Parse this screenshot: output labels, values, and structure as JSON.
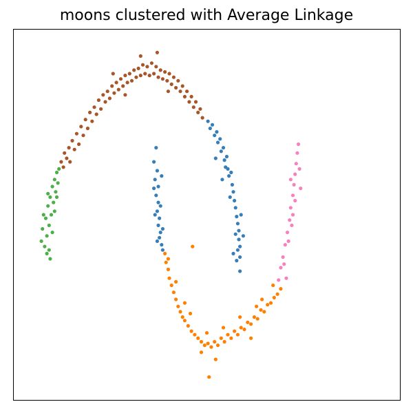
{
  "chart_data": {
    "type": "scatter",
    "title": "moons clustered with Average Linkage",
    "xlabel": "",
    "ylabel": "",
    "xlim": [
      -1.25,
      2.25
    ],
    "ylim": [
      -0.85,
      1.25
    ],
    "grid": false,
    "legend": "none",
    "axis_ticks": "hidden",
    "series": [
      {
        "color": "#a65628",
        "points": [
          [
            -0.82,
            0.5
          ],
          [
            -0.8,
            0.47
          ],
          [
            -0.79,
            0.55
          ],
          [
            -0.77,
            0.52
          ],
          [
            -0.75,
            0.58
          ],
          [
            -0.74,
            0.5
          ],
          [
            -0.72,
            0.62
          ],
          [
            -0.7,
            0.57
          ],
          [
            -0.68,
            0.66
          ],
          [
            -0.66,
            0.6
          ],
          [
            -0.64,
            0.7
          ],
          [
            -0.62,
            0.65
          ],
          [
            -0.6,
            0.74
          ],
          [
            -0.58,
            0.69
          ],
          [
            -0.56,
            0.78
          ],
          [
            -0.54,
            0.73
          ],
          [
            -0.52,
            0.81
          ],
          [
            -0.5,
            0.77
          ],
          [
            -0.48,
            0.85
          ],
          [
            -0.46,
            0.8
          ],
          [
            -0.44,
            0.88
          ],
          [
            -0.42,
            0.84
          ],
          [
            -0.4,
            0.9
          ],
          [
            -0.38,
            0.86
          ],
          [
            -0.36,
            0.93
          ],
          [
            -0.34,
            0.89
          ],
          [
            -0.32,
            0.95
          ],
          [
            -0.3,
            0.91
          ],
          [
            -0.28,
            0.97
          ],
          [
            -0.26,
            0.93
          ],
          [
            -0.24,
            0.99
          ],
          [
            -0.22,
            0.95
          ],
          [
            -0.2,
            1.0
          ],
          [
            -0.18,
            0.96
          ],
          [
            -0.16,
            1.02
          ],
          [
            -0.14,
            0.98
          ],
          [
            -0.12,
            1.03
          ],
          [
            -0.1,
            0.99
          ],
          [
            -0.08,
            1.05
          ],
          [
            -0.06,
            1.0
          ],
          [
            -0.04,
            1.04
          ],
          [
            -0.02,
            0.99
          ],
          [
            0.0,
            1.06
          ],
          [
            0.02,
            1.0
          ],
          [
            0.04,
            1.04
          ],
          [
            0.06,
            0.98
          ],
          [
            0.08,
            1.02
          ],
          [
            0.1,
            0.97
          ],
          [
            0.12,
            1.01
          ],
          [
            0.14,
            0.96
          ],
          [
            0.16,
            1.0
          ],
          [
            0.18,
            0.94
          ],
          [
            0.2,
            0.98
          ],
          [
            0.22,
            0.92
          ],
          [
            0.24,
            0.96
          ],
          [
            0.26,
            0.9
          ],
          [
            0.28,
            0.93
          ],
          [
            0.3,
            0.87
          ],
          [
            0.32,
            0.9
          ],
          [
            0.34,
            0.84
          ],
          [
            0.36,
            0.87
          ],
          [
            0.38,
            0.81
          ],
          [
            0.4,
            0.84
          ],
          [
            0.42,
            0.78
          ],
          [
            0.44,
            0.8
          ],
          [
            0.46,
            0.75
          ],
          [
            -0.35,
            1.0
          ],
          [
            -0.1,
            1.1
          ],
          [
            -0.24,
            0.88
          ],
          [
            0.15,
            0.9
          ],
          [
            0.05,
            1.12
          ]
        ]
      },
      {
        "color": "#4daf4a",
        "points": [
          [
            -1.0,
            0.05
          ],
          [
            -0.99,
            0.12
          ],
          [
            -0.97,
            0.02
          ],
          [
            -0.96,
            0.18
          ],
          [
            -0.95,
            0.08
          ],
          [
            -0.94,
            0.25
          ],
          [
            -0.93,
            0.14
          ],
          [
            -0.92,
            0.3
          ],
          [
            -0.91,
            0.2
          ],
          [
            -0.9,
            0.36
          ],
          [
            -0.89,
            0.27
          ],
          [
            -0.88,
            0.4
          ],
          [
            -0.87,
            0.33
          ],
          [
            -0.86,
            0.44
          ],
          [
            -0.85,
            0.38
          ],
          [
            -0.84,
            0.46
          ],
          [
            -0.95,
            -0.02
          ],
          [
            -0.93,
            0.0
          ],
          [
            -0.9,
            0.1
          ],
          [
            -0.88,
            0.22
          ],
          [
            -0.92,
            -0.05
          ],
          [
            -0.86,
            0.3
          ],
          [
            -0.98,
            0.2
          ],
          [
            -0.94,
            0.32
          ]
        ]
      },
      {
        "color": "#377eb8",
        "points": [
          [
            0.04,
            0.58
          ],
          [
            0.02,
            0.5
          ],
          [
            0.05,
            0.45
          ],
          [
            0.03,
            0.4
          ],
          [
            0.06,
            0.36
          ],
          [
            0.04,
            0.31
          ],
          [
            0.06,
            0.27
          ],
          [
            0.05,
            0.22
          ],
          [
            0.07,
            0.18
          ],
          [
            0.06,
            0.14
          ],
          [
            0.08,
            0.1
          ],
          [
            0.07,
            0.07
          ],
          [
            0.09,
            0.03
          ],
          [
            0.1,
            0.0
          ],
          [
            0.08,
            0.25
          ],
          [
            0.03,
            0.2
          ],
          [
            0.1,
            0.12
          ],
          [
            0.02,
            0.35
          ],
          [
            0.09,
            0.42
          ],
          [
            0.05,
            0.05
          ],
          [
            0.51,
            0.73
          ],
          [
            0.53,
            0.69
          ],
          [
            0.55,
            0.71
          ],
          [
            0.57,
            0.65
          ],
          [
            0.59,
            0.67
          ],
          [
            0.6,
            0.61
          ],
          [
            0.62,
            0.63
          ],
          [
            0.63,
            0.56
          ],
          [
            0.65,
            0.58
          ],
          [
            0.66,
            0.51
          ],
          [
            0.68,
            0.53
          ],
          [
            0.69,
            0.46
          ],
          [
            0.7,
            0.42
          ],
          [
            0.72,
            0.44
          ],
          [
            0.73,
            0.37
          ],
          [
            0.74,
            0.33
          ],
          [
            0.75,
            0.28
          ],
          [
            0.76,
            0.24
          ],
          [
            0.77,
            0.19
          ],
          [
            0.78,
            0.15
          ],
          [
            0.79,
            0.11
          ],
          [
            0.79,
            0.06
          ],
          [
            0.8,
            0.02
          ],
          [
            0.8,
            -0.04
          ],
          [
            0.78,
            0.0
          ],
          [
            0.76,
            0.09
          ],
          [
            0.71,
            0.3
          ],
          [
            0.67,
            0.47
          ],
          [
            0.81,
            0.2
          ],
          [
            0.83,
            0.08
          ],
          [
            0.74,
            -0.02
          ],
          [
            0.77,
            -0.06
          ],
          [
            0.8,
            -0.12
          ],
          [
            0.64,
            0.4
          ],
          [
            0.58,
            0.52
          ]
        ]
      },
      {
        "color": "#ff7f00",
        "points": [
          [
            0.12,
            -0.02
          ],
          [
            0.13,
            -0.07
          ],
          [
            0.15,
            -0.11
          ],
          [
            0.16,
            -0.16
          ],
          [
            0.18,
            -0.2
          ],
          [
            0.2,
            -0.24
          ],
          [
            0.22,
            -0.28
          ],
          [
            0.24,
            -0.32
          ],
          [
            0.26,
            -0.35
          ],
          [
            0.28,
            -0.38
          ],
          [
            0.3,
            -0.4
          ],
          [
            0.33,
            -0.43
          ],
          [
            0.36,
            -0.46
          ],
          [
            0.39,
            -0.48
          ],
          [
            0.42,
            -0.5
          ],
          [
            0.45,
            -0.52
          ],
          [
            0.48,
            -0.54
          ],
          [
            0.51,
            -0.53
          ],
          [
            0.54,
            -0.55
          ],
          [
            0.57,
            -0.52
          ],
          [
            0.6,
            -0.54
          ],
          [
            0.63,
            -0.5
          ],
          [
            0.66,
            -0.52
          ],
          [
            0.69,
            -0.48
          ],
          [
            0.72,
            -0.5
          ],
          [
            0.75,
            -0.46
          ],
          [
            0.78,
            -0.48
          ],
          [
            0.81,
            -0.44
          ],
          [
            0.84,
            -0.45
          ],
          [
            0.87,
            -0.41
          ],
          [
            0.9,
            -0.42
          ],
          [
            0.93,
            -0.38
          ],
          [
            0.96,
            -0.39
          ],
          [
            0.99,
            -0.34
          ],
          [
            1.02,
            -0.35
          ],
          [
            1.05,
            -0.31
          ],
          [
            1.08,
            -0.3
          ],
          [
            1.11,
            -0.27
          ],
          [
            1.14,
            -0.25
          ],
          [
            1.17,
            -0.22
          ],
          [
            0.22,
            -0.18
          ],
          [
            0.35,
            -0.36
          ],
          [
            0.5,
            -0.47
          ],
          [
            0.65,
            -0.44
          ],
          [
            0.8,
            -0.38
          ],
          [
            0.95,
            -0.32
          ],
          [
            1.1,
            -0.2
          ],
          [
            0.58,
            -0.62
          ],
          [
            0.52,
            -0.72
          ],
          [
            0.37,
            0.02
          ],
          [
            0.9,
            -0.5
          ],
          [
            0.3,
            -0.3
          ],
          [
            0.45,
            -0.58
          ],
          [
            1.0,
            -0.28
          ],
          [
            0.15,
            -0.05
          ]
        ]
      },
      {
        "color": "#f781bf",
        "points": [
          [
            1.15,
            -0.17
          ],
          [
            1.17,
            -0.1
          ],
          [
            1.19,
            -0.04
          ],
          [
            1.21,
            0.03
          ],
          [
            1.23,
            0.1
          ],
          [
            1.25,
            0.17
          ],
          [
            1.26,
            0.24
          ],
          [
            1.28,
            0.31
          ],
          [
            1.29,
            0.37
          ],
          [
            1.3,
            0.43
          ],
          [
            1.31,
            0.49
          ],
          [
            1.32,
            0.55
          ],
          [
            1.33,
            0.6
          ],
          [
            1.22,
            -0.16
          ],
          [
            1.2,
            -0.08
          ],
          [
            1.24,
            0.05
          ],
          [
            1.27,
            0.14
          ],
          [
            1.3,
            0.28
          ],
          [
            1.34,
            0.46
          ],
          [
            1.26,
            0.4
          ],
          [
            1.28,
            0.2
          ],
          [
            1.35,
            0.35
          ]
        ]
      }
    ]
  }
}
